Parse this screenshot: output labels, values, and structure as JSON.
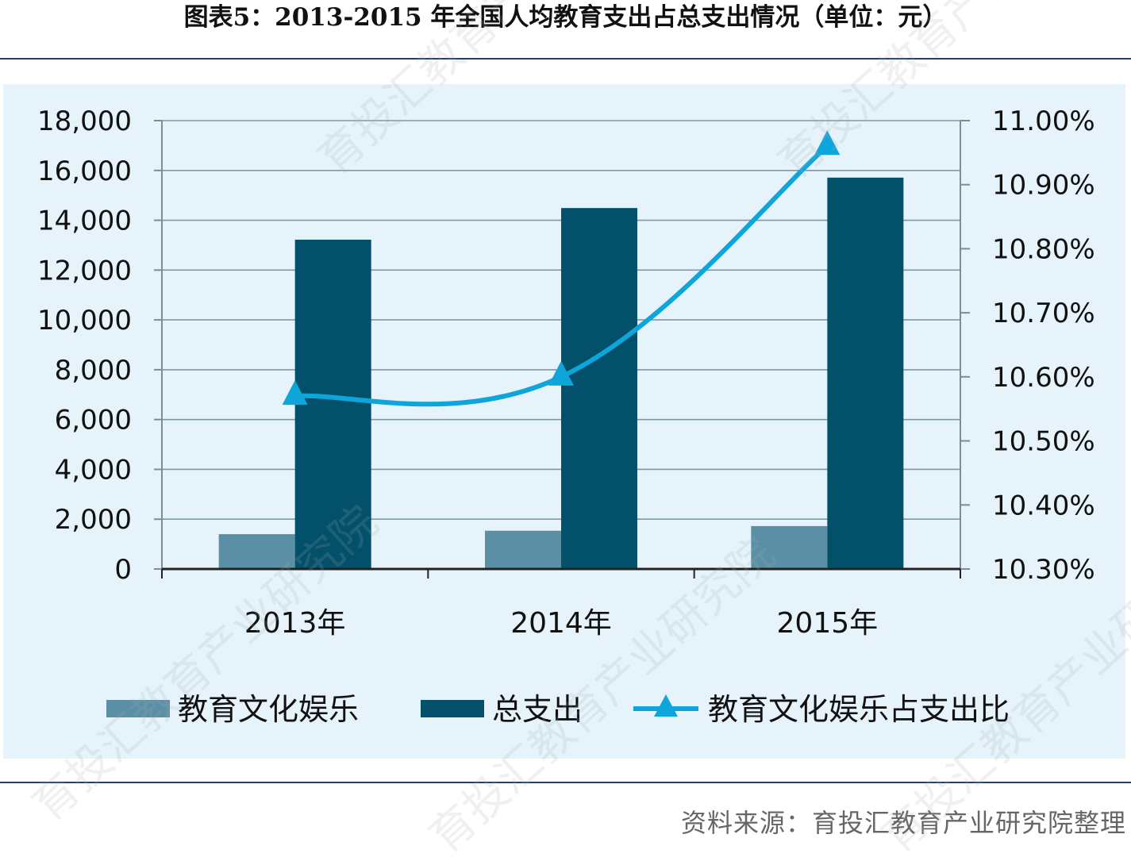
{
  "title": "图表5：2013-2015 年全国人均教育支出占总支出情况（单位：元）",
  "source": "资料来源：育投汇教育产业研究院整理",
  "watermark": [
    "育投汇教育产业研究院",
    "育投汇教育产业研究院",
    "育投汇教育产业研究院",
    "育投汇教育产业研究院",
    "育投汇教育产业研究院"
  ],
  "colors": {
    "series_edu": "#5b8fa5",
    "series_total": "#03506b",
    "series_ratio": "#0ea5db",
    "panel": "#e6f3fb",
    "rule": "#1f3f73"
  },
  "chart_data": {
    "type": "bar",
    "categories": [
      "2013年",
      "2014年",
      "2015年"
    ],
    "series": [
      {
        "name": "教育文化娱乐",
        "type": "bar",
        "axis": "left",
        "values": [
          1398,
          1536,
          1723
        ]
      },
      {
        "name": "总支出",
        "type": "bar",
        "axis": "left",
        "values": [
          13220,
          14491,
          15712
        ]
      },
      {
        "name": "教育文化娱乐占支出比",
        "type": "line",
        "axis": "right",
        "marker": "triangle",
        "values": [
          10.57,
          10.6,
          10.96
        ]
      }
    ],
    "y_left": {
      "range": [
        0,
        18000
      ],
      "ticks": [
        0,
        2000,
        4000,
        6000,
        8000,
        10000,
        12000,
        14000,
        16000,
        18000
      ],
      "tick_labels": [
        "0",
        "2,000",
        "4,000",
        "6,000",
        "8,000",
        "10,000",
        "12,000",
        "14,000",
        "16,000",
        "18,000"
      ]
    },
    "y_right": {
      "range": [
        10.3,
        11.0
      ],
      "ticks": [
        10.3,
        10.4,
        10.5,
        10.6,
        10.7,
        10.8,
        10.9,
        11.0
      ],
      "tick_labels": [
        "10.30%",
        "10.40%",
        "10.50%",
        "10.60%",
        "10.70%",
        "10.80%",
        "10.90%",
        "11.00%"
      ]
    },
    "grid": true,
    "legend": "bottom"
  }
}
